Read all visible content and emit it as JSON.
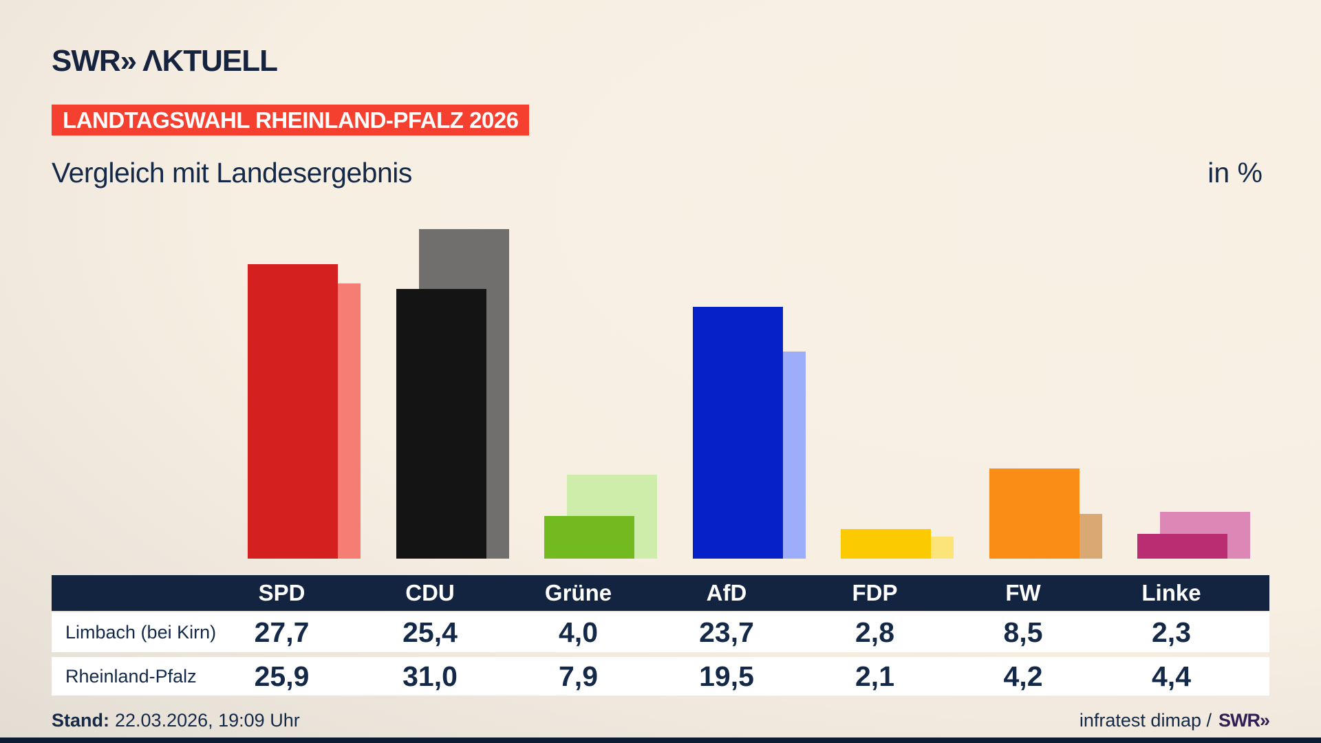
{
  "header": {
    "logo_swr": "SWR",
    "logo_chevron": "»",
    "logo_aktuell": "ΛKTUELL",
    "banner": "LANDTAGSWAHL RHEINLAND-PFALZ 2026"
  },
  "chart_data": {
    "type": "bar",
    "title": "Vergleich mit Landesergebnis",
    "unit_label": "in %",
    "categories": [
      "SPD",
      "CDU",
      "Grüne",
      "AfD",
      "FDP",
      "FW",
      "Linke"
    ],
    "series": [
      {
        "name": "Limbach (bei Kirn)",
        "values": [
          27.7,
          25.4,
          4.0,
          23.7,
          2.8,
          8.5,
          2.3
        ]
      },
      {
        "name": "Rheinland-Pfalz",
        "values": [
          25.9,
          31.0,
          7.9,
          19.5,
          2.1,
          4.2,
          4.4
        ]
      }
    ],
    "colors": {
      "SPD": {
        "main": "#d42120",
        "light": "#f57d74"
      },
      "CDU": {
        "main": "#141414",
        "light": "#716f6d"
      },
      "Grüne": {
        "main": "#72ba1f",
        "light": "#cfedaa"
      },
      "AfD": {
        "main": "#0721c9",
        "light": "#9dadfa"
      },
      "FDP": {
        "main": "#fcca00",
        "light": "#fde478"
      },
      "FW": {
        "main": "#f98d15",
        "light": "#d9a873"
      },
      "Linke": {
        "main": "#ba2d73",
        "light": "#dd87b6"
      }
    },
    "legend_position": "table-below",
    "grid": false,
    "value_format": "comma-decimal"
  },
  "footer": {
    "stand_label": "Stand:",
    "stand_value": "22.03.2026, 19:09 Uhr",
    "source_text": "infratest dimap /",
    "source_logo": "SWR»"
  }
}
